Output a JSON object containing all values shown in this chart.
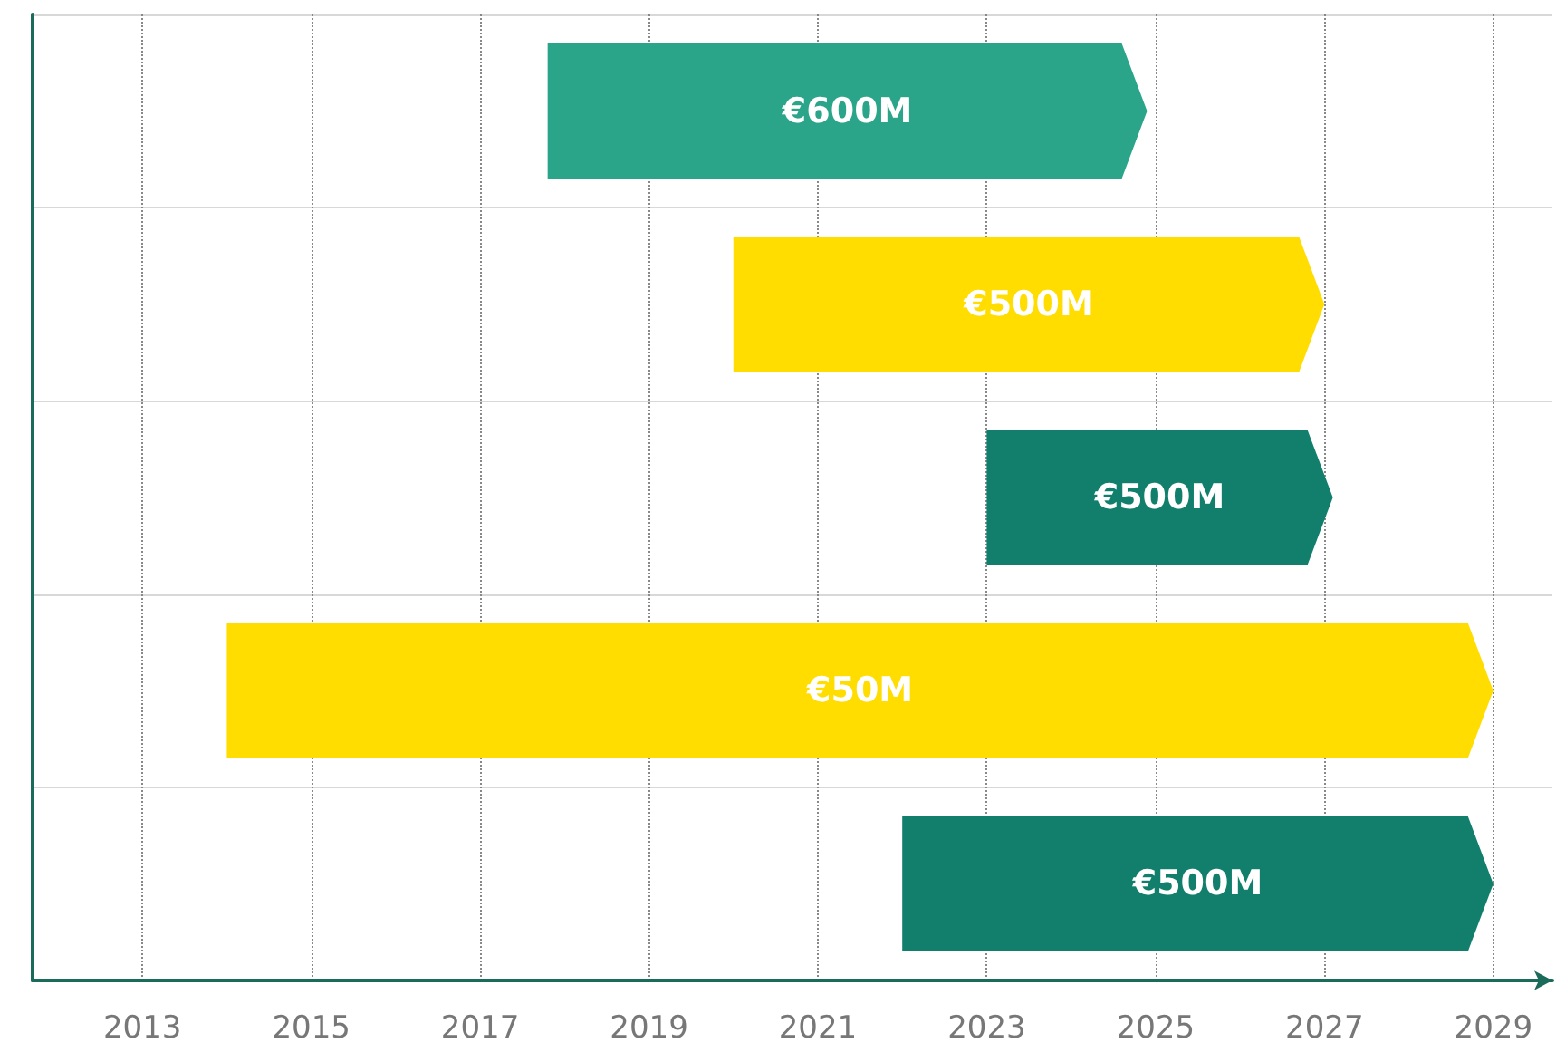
{
  "chart_data": {
    "type": "bar",
    "orientation": "horizontal",
    "categories": [
      null,
      null,
      null,
      null,
      null
    ],
    "base": [
      2017.8,
      2020,
      2023,
      2014,
      2022
    ],
    "values": [
      7.1,
      7,
      4.1,
      15,
      7
    ],
    "colors": [
      "#2ba58a",
      "#ffdd00",
      "#117f6c",
      "#ffdd00",
      "#117f6c"
    ],
    "annotations": [
      "€600M",
      "€500M",
      "€500M",
      "€50M",
      "€500M"
    ],
    "xlim": [
      2011.7,
      2029.7
    ],
    "xticks": [
      2013,
      2015,
      2017,
      2019,
      2021,
      2023,
      2025,
      2027,
      2029
    ],
    "grid": true
  }
}
